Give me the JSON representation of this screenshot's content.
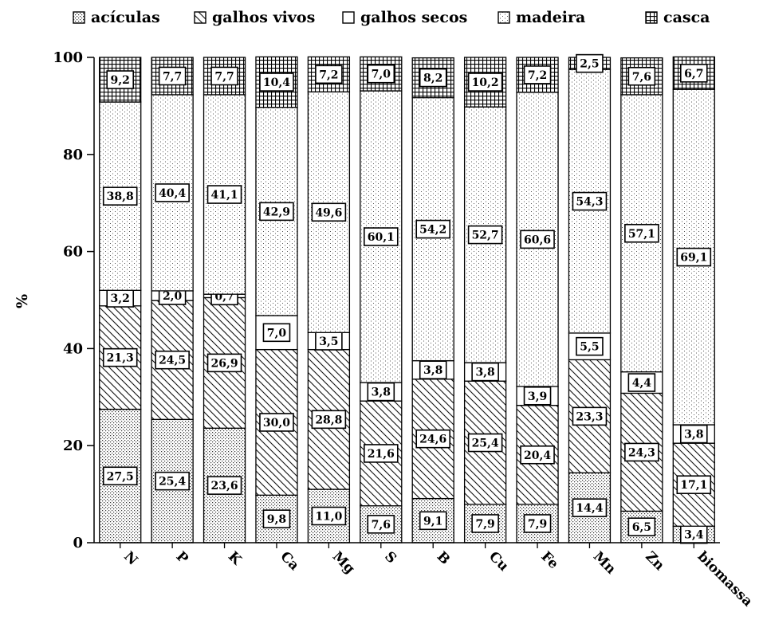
{
  "chart_data": {
    "type": "bar",
    "stacked": true,
    "title": "",
    "xlabel": "",
    "ylabel": "%",
    "ylim": [
      0,
      100
    ],
    "yticks": [
      0,
      20,
      40,
      60,
      80,
      100
    ],
    "grid": false,
    "legend_position": "top",
    "categories": [
      "N",
      "P",
      "K",
      "Ca",
      "Mg",
      "S",
      "B",
      "Cu",
      "Fe",
      "Mn",
      "Zn",
      "biomassa"
    ],
    "series": [
      {
        "name": "acículas",
        "pattern": "dots-dense",
        "values": [
          27.5,
          25.4,
          23.6,
          9.8,
          11.0,
          7.6,
          9.1,
          7.9,
          7.9,
          14.4,
          6.5,
          3.4
        ]
      },
      {
        "name": "galhos vivos",
        "pattern": "hatch",
        "values": [
          21.3,
          24.5,
          26.9,
          30.0,
          28.8,
          21.6,
          24.6,
          25.4,
          20.4,
          23.3,
          24.3,
          17.1
        ]
      },
      {
        "name": "galhos secos",
        "pattern": "empty",
        "values": [
          3.2,
          2.0,
          0.7,
          7.0,
          3.5,
          3.8,
          3.8,
          3.8,
          3.9,
          5.5,
          4.4,
          3.8
        ]
      },
      {
        "name": "madeira",
        "pattern": "dots-sparse",
        "values": [
          38.8,
          40.4,
          41.1,
          42.9,
          49.6,
          60.1,
          54.2,
          52.7,
          60.6,
          54.3,
          57.1,
          69.1
        ]
      },
      {
        "name": "casca",
        "pattern": "grid",
        "values": [
          9.2,
          7.7,
          7.7,
          10.4,
          7.2,
          7.0,
          8.2,
          10.2,
          7.2,
          2.5,
          7.6,
          6.7
        ]
      }
    ],
    "data_labels": [
      [
        "27,5",
        "21,3",
        "3,2",
        "38,8",
        "9,2"
      ],
      [
        "25,4",
        "24,5",
        "2,0",
        "40,4",
        "7,7"
      ],
      [
        "23,6",
        "26,9",
        "0,7",
        "41,1",
        "7,7"
      ],
      [
        "9,8",
        "30,0",
        "7,0",
        "42,9",
        "10,4"
      ],
      [
        "11,0",
        "28,8",
        "3,5",
        "49,6",
        "7,2"
      ],
      [
        "7,6",
        "21,6",
        "3,8",
        "60,1",
        "7,0"
      ],
      [
        "9,1",
        "24,6",
        "3,8",
        "54,2",
        "8,2"
      ],
      [
        "7,9",
        "25,4",
        "3,8",
        "52,7",
        "10,2"
      ],
      [
        "7,9",
        "20,4",
        "3,9",
        "60,6",
        "7,2"
      ],
      [
        "14,4",
        "23,3",
        "5,5",
        "54,3",
        "2,5"
      ],
      [
        "6,5",
        "24,3",
        "4,4",
        "57,1",
        "7,6"
      ],
      [
        "3,4",
        "17,1",
        "3,8",
        "69,1",
        "6,7"
      ]
    ]
  }
}
